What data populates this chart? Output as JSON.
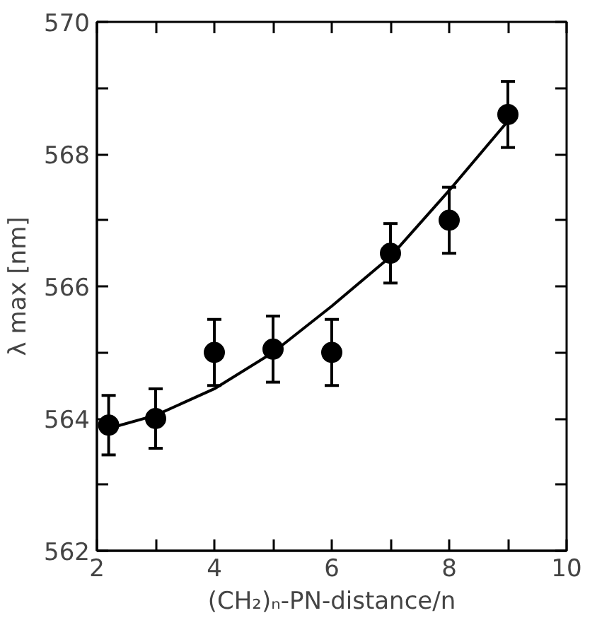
{
  "chart_data": {
    "type": "scatter",
    "xlabel": "(CH₂)ₙ-PN-distance/n",
    "ylabel": "λ max [nm]",
    "xlim": [
      2,
      10
    ],
    "ylim": [
      562,
      570
    ],
    "xticks": [
      2,
      {
        "value": 3,
        "label": null
      },
      4,
      {
        "value": 5,
        "label": null
      },
      6,
      {
        "value": 7,
        "label": null
      },
      8,
      {
        "value": 9,
        "label": null
      },
      10
    ],
    "yticks": [
      562,
      {
        "value": 563,
        "label": null
      },
      564,
      {
        "value": 565,
        "label": null
      },
      566,
      {
        "value": 567,
        "label": null
      },
      568,
      {
        "value": 569,
        "label": null
      },
      570
    ],
    "grid": false,
    "marker": "circle",
    "series": [
      {
        "color": "#000000",
        "x": [
          2.2,
          3,
          4,
          5,
          6,
          7,
          8,
          9
        ],
        "values": [
          563.9,
          564.0,
          565.0,
          565.05,
          565.0,
          566.5,
          567.0,
          568.6
        ],
        "errors": [
          0.45,
          0.45,
          0.5,
          0.5,
          0.5,
          0.45,
          0.5,
          0.5
        ]
      },
      {
        "type": "line",
        "color": "#000000",
        "marker": "none",
        "line_style": "solid",
        "x": [
          2.2,
          3,
          4,
          5,
          6,
          7,
          8,
          9
        ],
        "values": [
          563.85,
          564.05,
          564.45,
          565.0,
          565.7,
          566.45,
          567.45,
          568.5
        ]
      }
    ]
  }
}
